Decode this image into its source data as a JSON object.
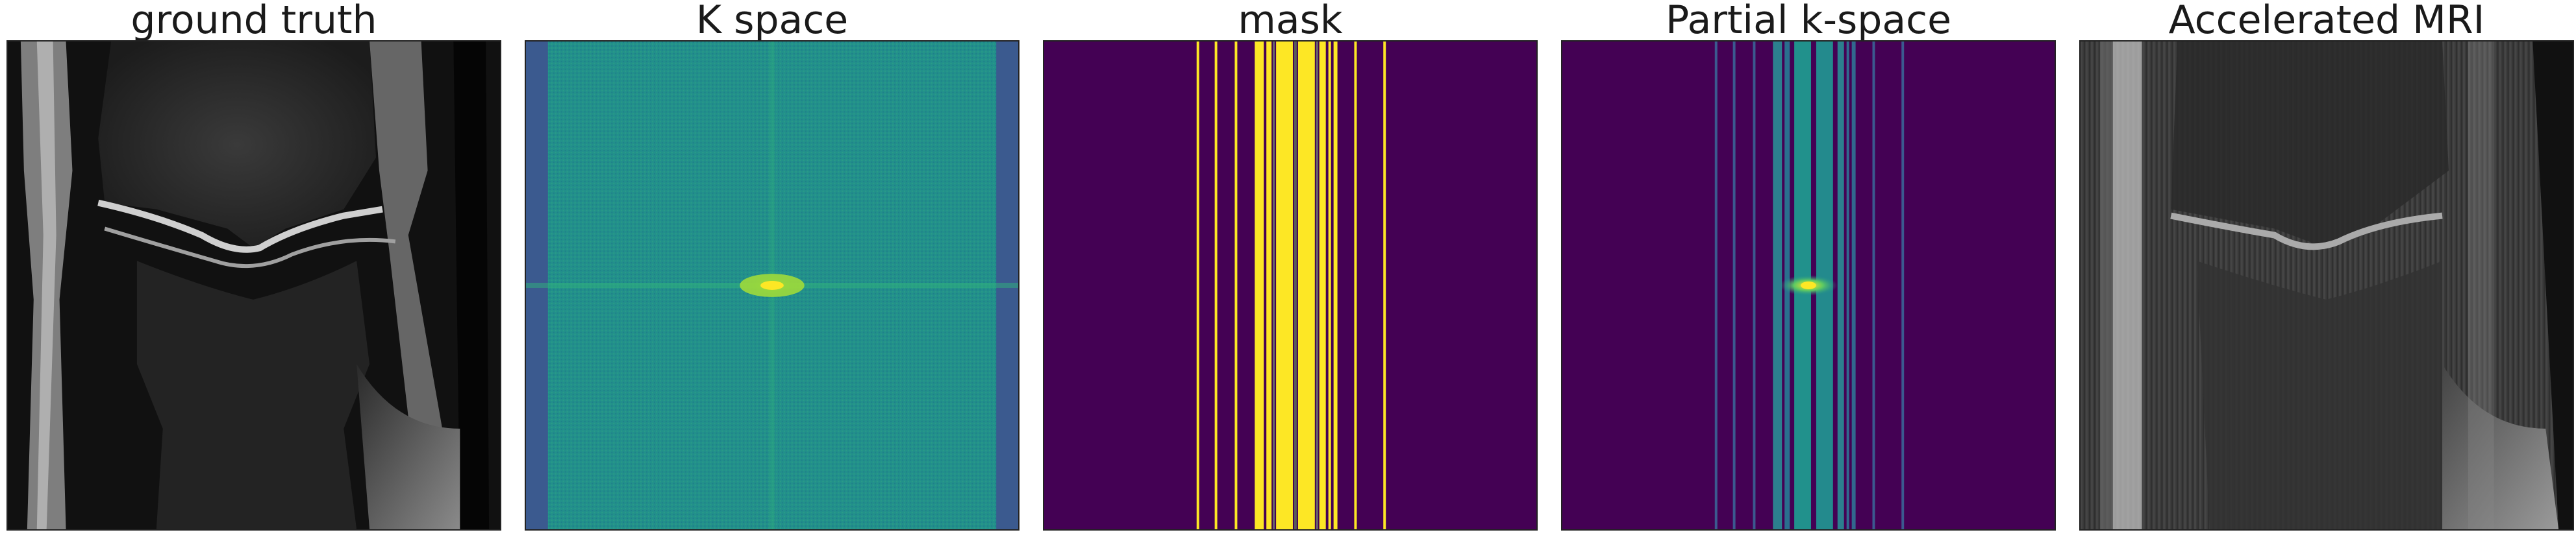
{
  "panels": [
    {
      "title": "ground truth",
      "kind": "mri-image"
    },
    {
      "title": "K space",
      "kind": "kspace"
    },
    {
      "title": "mask",
      "kind": "mask"
    },
    {
      "title": "Partial k-space",
      "kind": "partial-kspace"
    },
    {
      "title": "Accelerated MRI",
      "kind": "mri-reconstruction"
    }
  ],
  "colors": {
    "viridis_dark": "#440154",
    "viridis_blue": "#31688e",
    "viridis_teal": "#21918c",
    "viridis_green": "#5ec962",
    "viridis_yellow": "#fde725",
    "grayscale_bg": "#1a1a1a"
  }
}
